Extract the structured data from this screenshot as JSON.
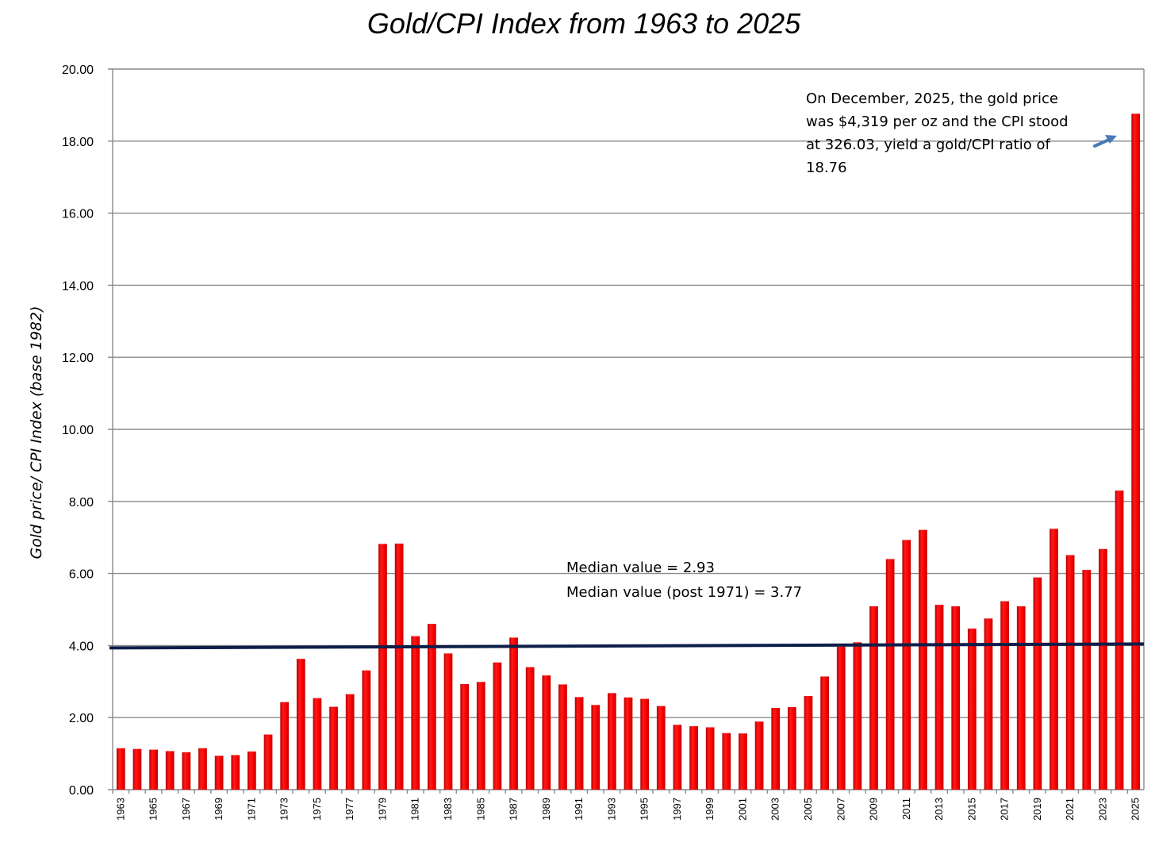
{
  "chart_data": {
    "type": "bar",
    "title": "Gold/CPI Index from 1963 to 2025",
    "xlabel": "",
    "ylabel": "Gold price/ CPI Index (base 1982)",
    "ylim": [
      0,
      20
    ],
    "yticks": [
      "0.00",
      "2.00",
      "4.00",
      "6.00",
      "8.00",
      "10.00",
      "12.00",
      "14.00",
      "16.00",
      "18.00",
      "20.00"
    ],
    "x_tick_labels": [
      "1963",
      "1965",
      "1967",
      "1969",
      "1971",
      "1973",
      "1975",
      "1977",
      "1979",
      "1981",
      "1983",
      "1985",
      "1987",
      "1989",
      "1991",
      "1993",
      "1995",
      "1997",
      "1999",
      "2001",
      "2003",
      "2005",
      "2007",
      "2009",
      "2011",
      "2013",
      "2015",
      "2017",
      "2019",
      "2021",
      "2023",
      "2025"
    ],
    "categories": [
      1963,
      1964,
      1965,
      1966,
      1967,
      1968,
      1969,
      1970,
      1971,
      1972,
      1973,
      1974,
      1975,
      1976,
      1977,
      1978,
      1979,
      1980,
      1981,
      1982,
      1983,
      1984,
      1985,
      1986,
      1987,
      1988,
      1989,
      1990,
      1991,
      1992,
      1993,
      1994,
      1995,
      1996,
      1997,
      1998,
      1999,
      2000,
      2001,
      2002,
      2003,
      2004,
      2005,
      2006,
      2007,
      2008,
      2009,
      2010,
      2011,
      2012,
      2013,
      2014,
      2015,
      2016,
      2017,
      2018,
      2019,
      2020,
      2021,
      2022,
      2023,
      2024,
      2025
    ],
    "values": [
      1.15,
      1.13,
      1.11,
      1.07,
      1.04,
      1.15,
      0.94,
      0.96,
      1.06,
      1.53,
      2.43,
      3.63,
      2.54,
      2.3,
      2.65,
      3.31,
      6.82,
      6.83,
      4.26,
      4.6,
      3.78,
      2.93,
      2.99,
      3.53,
      4.22,
      3.4,
      3.17,
      2.92,
      2.57,
      2.35,
      2.68,
      2.56,
      2.52,
      2.32,
      1.8,
      1.76,
      1.73,
      1.57,
      1.56,
      1.89,
      2.27,
      2.29,
      2.6,
      3.14,
      3.97,
      4.09,
      5.09,
      6.4,
      6.93,
      7.21,
      5.13,
      5.09,
      4.47,
      4.75,
      5.23,
      5.09,
      5.89,
      7.24,
      6.51,
      6.1,
      6.68,
      8.3,
      18.76
    ],
    "color": "#ff0000",
    "median_line": {
      "value": 4.0,
      "color": "#0d1e4a"
    },
    "annotations": {
      "median_lines": [
        "Median value = 2.93",
        "Median value (post 1971) = 3.77"
      ],
      "callout_lines": [
        "On December, 2025, the gold price",
        "was $4,319 per oz and the CPI stood",
        "at 326.03, yield a gold/CPI ratio of",
        "18.76"
      ],
      "arrow_color": "#4a7ab5"
    }
  }
}
